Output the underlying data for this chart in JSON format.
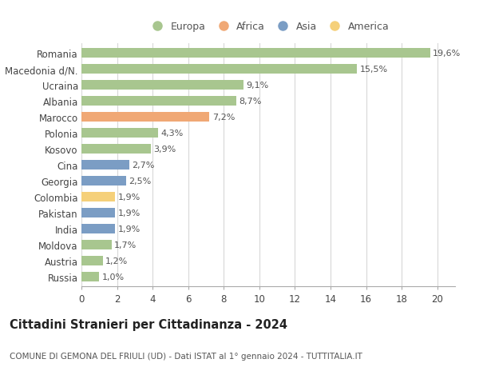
{
  "countries": [
    "Romania",
    "Macedonia d/N.",
    "Ucraina",
    "Albania",
    "Marocco",
    "Polonia",
    "Kosovo",
    "Cina",
    "Georgia",
    "Colombia",
    "Pakistan",
    "India",
    "Moldova",
    "Austria",
    "Russia"
  ],
  "values": [
    19.6,
    15.5,
    9.1,
    8.7,
    7.2,
    4.3,
    3.9,
    2.7,
    2.5,
    1.9,
    1.9,
    1.9,
    1.7,
    1.2,
    1.0
  ],
  "labels": [
    "19,6%",
    "15,5%",
    "9,1%",
    "8,7%",
    "7,2%",
    "4,3%",
    "3,9%",
    "2,7%",
    "2,5%",
    "1,9%",
    "1,9%",
    "1,9%",
    "1,7%",
    "1,2%",
    "1,0%"
  ],
  "continents": [
    "Europa",
    "Europa",
    "Europa",
    "Europa",
    "Africa",
    "Europa",
    "Europa",
    "Asia",
    "Asia",
    "America",
    "Asia",
    "Asia",
    "Europa",
    "Europa",
    "Europa"
  ],
  "colors": {
    "Europa": "#a8c68f",
    "Africa": "#f0a875",
    "Asia": "#7b9dc4",
    "America": "#f5d07a"
  },
  "legend_order": [
    "Europa",
    "Africa",
    "Asia",
    "America"
  ],
  "title": "Cittadini Stranieri per Cittadinanza - 2024",
  "subtitle": "COMUNE DI GEMONA DEL FRIULI (UD) - Dati ISTAT al 1° gennaio 2024 - TUTTITALIA.IT",
  "xlim": [
    0,
    21
  ],
  "xticks": [
    0,
    2,
    4,
    6,
    8,
    10,
    12,
    14,
    16,
    18,
    20
  ],
  "background_color": "#ffffff",
  "grid_color": "#d8d8d8",
  "bar_height": 0.62,
  "title_fontsize": 10.5,
  "subtitle_fontsize": 7.5,
  "tick_fontsize": 8.5,
  "label_fontsize": 8.0,
  "legend_fontsize": 9.0
}
